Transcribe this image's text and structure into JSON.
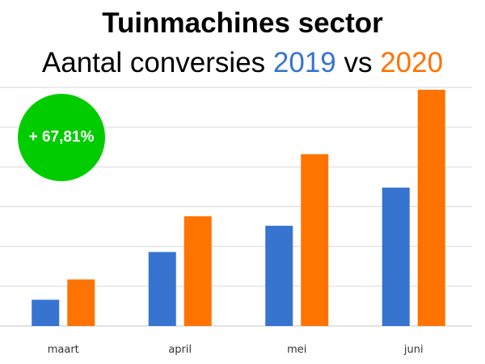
{
  "colors": {
    "series_2019": "#3674cf",
    "series_2020": "#ff7300",
    "badge": "#00cc00",
    "grid": "#d9d9d9"
  },
  "subtitle": {
    "prefix": "Aantal conversies ",
    "year_a": "2019",
    "middle": " vs ",
    "year_b": "2020"
  },
  "badge": {
    "text": "+ 67,81%"
  },
  "chart_data": {
    "type": "bar",
    "title": "Tuinmachines sector",
    "subtitle": "Aantal conversies 2019 vs 2020",
    "categories": [
      "maart",
      "april",
      "mei",
      "juni"
    ],
    "series": [
      {
        "name": "2019",
        "color": "#3674cf",
        "values": [
          11,
          31,
          42,
          58
        ]
      },
      {
        "name": "2020",
        "color": "#ff7300",
        "values": [
          19.5,
          46,
          72,
          99
        ]
      }
    ],
    "ylim": [
      0,
      100
    ],
    "grid": true,
    "y_tick_labels_shown": false
  }
}
